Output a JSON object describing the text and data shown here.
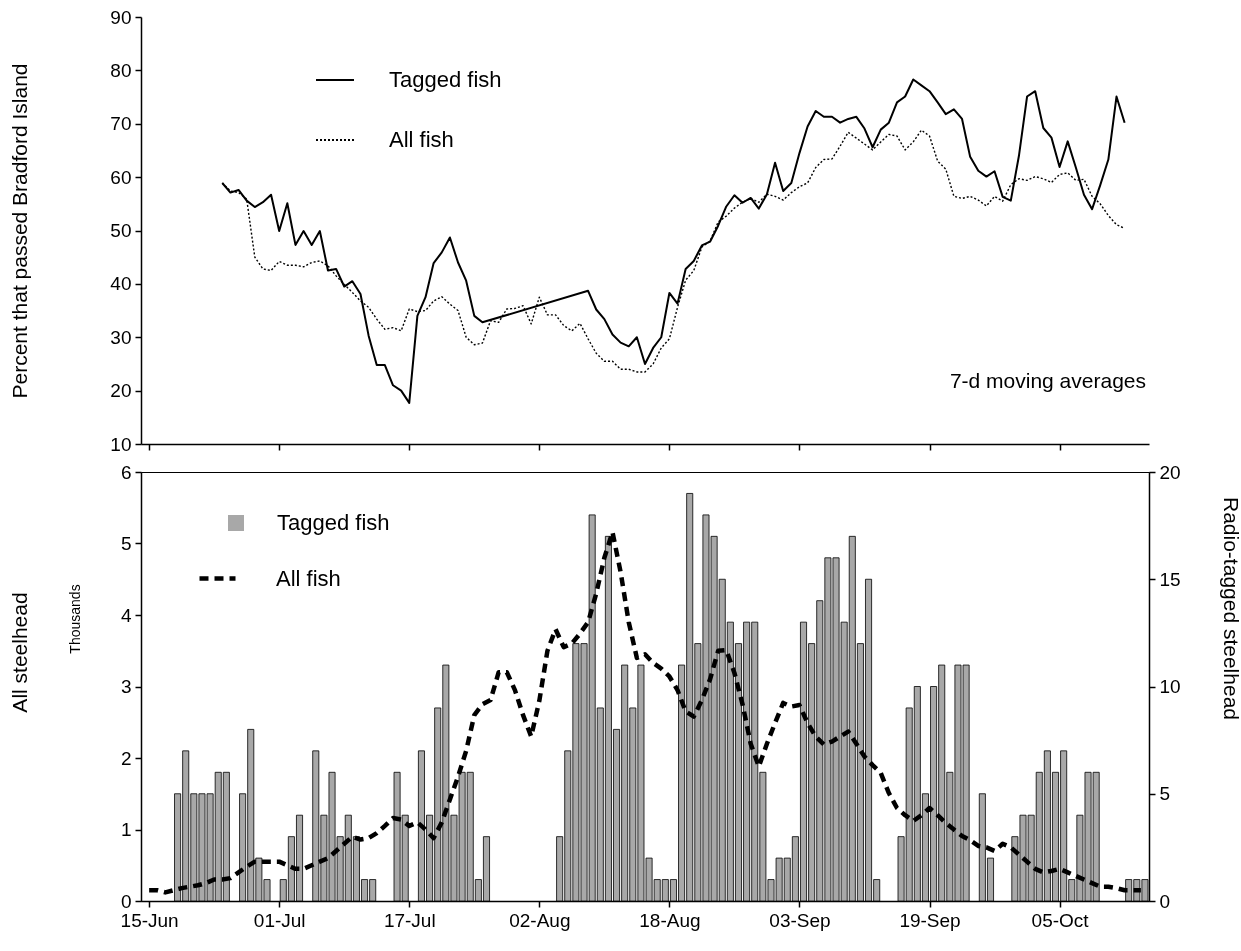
{
  "chart_data": [
    {
      "type": "line",
      "ylabel": "Percent that passed Bradford Island",
      "annotations": [
        "7-d moving averages"
      ],
      "xlim": [
        "--06-14",
        "--10-16"
      ],
      "xticks": [
        {
          "value": "--06-15",
          "label": null
        },
        {
          "value": "--07-01",
          "label": null
        },
        {
          "value": "--07-17",
          "label": null
        },
        {
          "value": "--08-02",
          "label": null
        },
        {
          "value": "--08-18",
          "label": null
        },
        {
          "value": "--09-03",
          "label": null
        },
        {
          "value": "--09-19",
          "label": null
        },
        {
          "value": "--10-05",
          "label": null
        }
      ],
      "tick_labels": "y",
      "ylim": [
        10,
        90
      ],
      "yticks": [
        10,
        20,
        30,
        40,
        50,
        60,
        70,
        80,
        90
      ],
      "grid": false,
      "legend": "top left",
      "series": [
        {
          "name": "Tagged fish",
          "color": "#000000",
          "line_style": "solid",
          "x": [
            "--06-24",
            "--06-25",
            "--06-26",
            "--06-27",
            "--06-28",
            "--06-29",
            "--06-30",
            "--07-01",
            "--07-02",
            "--07-03",
            "--07-04",
            "--07-05",
            "--07-06",
            "--07-07",
            "--07-08",
            "--07-09",
            "--07-10",
            "--07-11",
            "--07-12",
            "--07-13",
            "--07-14",
            "--07-15",
            "--07-16",
            "--07-17",
            "--07-18",
            "--07-19",
            "--07-20",
            "--07-21",
            "--07-22",
            "--07-23",
            "--07-24",
            "--07-25",
            "--07-26",
            "--08-08",
            "--08-09",
            "--08-10",
            "--08-11",
            "--08-12",
            "--08-13",
            "--08-14",
            "--08-15",
            "--08-16",
            "--08-17",
            "--08-18",
            "--08-19",
            "--08-20",
            "--08-21",
            "--08-22",
            "--08-23",
            "--08-24",
            "--08-25",
            "--08-26",
            "--08-27",
            "--08-28",
            "--08-29",
            "--08-30",
            "--08-31",
            "--09-01",
            "--09-02",
            "--09-03",
            "--09-04",
            "--09-05",
            "--09-06",
            "--09-07",
            "--09-08",
            "--09-09",
            "--09-10",
            "--09-11",
            "--09-12",
            "--09-13",
            "--09-14",
            "--09-15",
            "--09-16",
            "--09-17",
            "--09-18",
            "--09-19",
            "--09-20",
            "--09-21",
            "--09-22",
            "--09-23",
            "--09-24",
            "--09-25",
            "--09-26",
            "--09-27",
            "--09-28",
            "--09-29",
            "--09-30",
            "--10-01",
            "--10-02",
            "--10-03",
            "--10-04",
            "--10-05",
            "--10-06",
            "--10-07",
            "--10-08",
            "--10-09",
            "--10-10",
            "--10-11",
            "--10-12",
            "--10-13"
          ],
          "values": [
            58.9,
            57.1,
            57.6,
            55.6,
            54.4,
            55.3,
            56.7,
            49.9,
            55.1,
            47.3,
            49.9,
            47.3,
            49.9,
            42.5,
            42.8,
            39.5,
            40.5,
            38.1,
            30.3,
            24.8,
            24.8,
            21.0,
            20.0,
            17.7,
            34.0,
            37.5,
            43.9,
            45.9,
            48.7,
            44.0,
            40.6,
            34.0,
            32.8,
            38.7,
            35.2,
            33.4,
            30.5,
            29.0,
            28.3,
            30.0,
            25.0,
            28.0,
            30.0,
            38.3,
            36.3,
            42.8,
            44.3,
            47.2,
            47.9,
            50.9,
            54.5,
            56.6,
            55.2,
            56.1,
            54.1,
            56.8,
            62.7,
            57.4,
            58.9,
            64.5,
            69.5,
            72.4,
            71.3,
            71.3,
            70.2,
            70.9,
            71.3,
            69.1,
            65.6,
            68.9,
            70.2,
            74.0,
            75.1,
            78.3,
            77.2,
            76.1,
            74.0,
            71.8,
            72.7,
            70.9,
            63.8,
            61.2,
            60.1,
            61.1,
            56.3,
            55.6,
            64.0,
            75.1,
            76.1,
            69.2,
            67.4,
            61.9,
            66.7,
            61.8,
            56.7,
            54.0,
            58.5,
            63.3,
            75.1,
            70.2
          ]
        },
        {
          "name": "All fish",
          "color": "#000000",
          "line_style": "dotted",
          "x": [
            "--06-24",
            "--06-25",
            "--06-26",
            "--06-27",
            "--06-28",
            "--06-29",
            "--06-30",
            "--07-01",
            "--07-02",
            "--07-03",
            "--07-04",
            "--07-05",
            "--07-06",
            "--07-07",
            "--07-08",
            "--07-09",
            "--07-10",
            "--07-11",
            "--07-12",
            "--07-13",
            "--07-14",
            "--07-15",
            "--07-16",
            "--07-17",
            "--07-18",
            "--07-19",
            "--07-20",
            "--07-21",
            "--07-22",
            "--07-23",
            "--07-24",
            "--07-25",
            "--07-26",
            "--07-27",
            "--07-28",
            "--07-29",
            "--07-30",
            "--07-31",
            "--08-01",
            "--08-02",
            "--08-03",
            "--08-04",
            "--08-05",
            "--08-06",
            "--08-07",
            "--08-08",
            "--08-09",
            "--08-10",
            "--08-11",
            "--08-12",
            "--08-13",
            "--08-14",
            "--08-15",
            "--08-16",
            "--08-17",
            "--08-18",
            "--08-19",
            "--08-20",
            "--08-21",
            "--08-22",
            "--08-23",
            "--08-24",
            "--08-25",
            "--08-26",
            "--08-27",
            "--08-28",
            "--08-29",
            "--08-30",
            "--08-31",
            "--09-01",
            "--09-02",
            "--09-03",
            "--09-04",
            "--09-05",
            "--09-06",
            "--09-07",
            "--09-08",
            "--09-09",
            "--09-10",
            "--09-11",
            "--09-12",
            "--09-13",
            "--09-14",
            "--09-15",
            "--09-16",
            "--09-17",
            "--09-18",
            "--09-19",
            "--09-20",
            "--09-21",
            "--09-22",
            "--09-23",
            "--09-24",
            "--09-25",
            "--09-26",
            "--09-27",
            "--09-28",
            "--09-29",
            "--09-30",
            "--10-01",
            "--10-02",
            "--10-03",
            "--10-04",
            "--10-05",
            "--10-06",
            "--10-07",
            "--10-08",
            "--10-09",
            "--10-10",
            "--10-11",
            "--10-12",
            "--10-13"
          ],
          "values": [
            58.9,
            57.4,
            57.1,
            55.9,
            45.0,
            42.8,
            42.5,
            44.2,
            43.5,
            43.5,
            43.2,
            44.0,
            44.3,
            43.4,
            41.5,
            39.9,
            38.4,
            36.8,
            35.6,
            33.4,
            31.5,
            31.8,
            31.2,
            35.3,
            34.8,
            35.0,
            36.8,
            37.6,
            36.2,
            35.0,
            30.0,
            28.6,
            28.9,
            33.1,
            32.8,
            35.3,
            35.4,
            35.9,
            32.5,
            37.5,
            34.2,
            34.2,
            32.2,
            31.2,
            32.6,
            29.7,
            27.0,
            25.5,
            25.5,
            24.0,
            24.0,
            23.5,
            23.5,
            25.0,
            28.0,
            29.7,
            35.6,
            40.7,
            42.5,
            46.9,
            48.0,
            51.6,
            52.7,
            54.2,
            55.3,
            56.0,
            55.3,
            56.8,
            56.4,
            55.7,
            57.1,
            58.2,
            58.9,
            61.8,
            63.3,
            63.4,
            65.8,
            68.4,
            67.3,
            66.2,
            65.1,
            66.6,
            68.0,
            67.7,
            65.1,
            66.6,
            68.8,
            67.7,
            63.0,
            61.5,
            56.4,
            56.0,
            56.4,
            55.7,
            54.6,
            56.4,
            55.5,
            58.6,
            59.7,
            59.4,
            60.1,
            59.7,
            59.0,
            60.5,
            60.8,
            59.4,
            59.6,
            56.4,
            55.0,
            52.8,
            51.1,
            50.4
          ]
        }
      ]
    },
    {
      "type": "bar",
      "ylabel": "All steelhead",
      "y2label": "Radio-tagged steelhead",
      "annotations": [
        "Thousands"
      ],
      "xlim": [
        "--06-14",
        "--10-16"
      ],
      "xticks": [
        {
          "value": "--06-15",
          "label": "15-Jun"
        },
        {
          "value": "--07-01",
          "label": "01-Jul"
        },
        {
          "value": "--07-17",
          "label": "17-Jul"
        },
        {
          "value": "--08-02",
          "label": "02-Aug"
        },
        {
          "value": "--08-18",
          "label": "18-Aug"
        },
        {
          "value": "--09-03",
          "label": "03-Sep"
        },
        {
          "value": "--09-19",
          "label": "19-Sep"
        },
        {
          "value": "--10-05",
          "label": "05-Oct"
        }
      ],
      "ylim": [
        0,
        6
      ],
      "yticks": [
        0,
        1,
        2,
        3,
        4,
        5,
        6
      ],
      "y2lim": [
        0,
        20
      ],
      "y2ticks": [
        0,
        5,
        10,
        15,
        20
      ],
      "grid": false,
      "legend": "top left",
      "series": [
        {
          "name": "Tagged fish",
          "axis": "y2",
          "color": "#a8a8a8",
          "x": [
            "--06-18",
            "--06-19",
            "--06-20",
            "--06-21",
            "--06-22",
            "--06-23",
            "--06-24",
            "--06-26",
            "--06-27",
            "--06-28",
            "--06-29",
            "--07-01",
            "--07-02",
            "--07-03",
            "--07-05",
            "--07-06",
            "--07-07",
            "--07-08",
            "--07-09",
            "--07-10",
            "--07-11",
            "--07-12",
            "--07-15",
            "--07-16",
            "--07-18",
            "--07-19",
            "--07-20",
            "--07-21",
            "--07-22",
            "--07-23",
            "--07-24",
            "--07-25",
            "--07-26",
            "--08-04",
            "--08-05",
            "--08-06",
            "--08-07",
            "--08-08",
            "--08-09",
            "--08-10",
            "--08-11",
            "--08-12",
            "--08-13",
            "--08-14",
            "--08-15",
            "--08-16",
            "--08-17",
            "--08-18",
            "--08-19",
            "--08-20",
            "--08-21",
            "--08-22",
            "--08-23",
            "--08-24",
            "--08-25",
            "--08-26",
            "--08-27",
            "--08-28",
            "--08-29",
            "--08-30",
            "--08-31",
            "--09-01",
            "--09-02",
            "--09-03",
            "--09-04",
            "--09-05",
            "--09-06",
            "--09-07",
            "--09-08",
            "--09-09",
            "--09-10",
            "--09-11",
            "--09-12",
            "--09-15",
            "--09-16",
            "--09-17",
            "--09-18",
            "--09-19",
            "--09-20",
            "--09-21",
            "--09-22",
            "--09-23",
            "--09-25",
            "--09-26",
            "--09-29",
            "--09-30",
            "--10-01",
            "--10-02",
            "--10-03",
            "--10-04",
            "--10-05",
            "--10-06",
            "--10-07",
            "--10-08",
            "--10-09",
            "--10-13",
            "--10-14",
            "--10-15"
          ],
          "values": [
            5,
            7,
            5,
            5,
            5,
            6,
            6,
            5,
            8,
            2,
            1,
            1,
            3,
            4,
            7,
            4,
            6,
            3,
            4,
            3,
            1,
            1,
            6,
            4,
            7,
            4,
            9,
            11,
            4,
            6,
            6,
            1,
            3,
            3,
            7,
            12,
            12,
            18,
            9,
            17,
            8,
            11,
            9,
            11,
            2,
            1,
            1,
            1,
            11,
            19,
            12,
            18,
            17,
            15,
            13,
            12,
            13,
            13,
            6,
            1,
            2,
            2,
            3,
            13,
            12,
            14,
            16,
            16,
            13,
            17,
            12,
            15,
            1,
            3,
            9,
            10,
            5,
            10,
            11,
            6,
            11,
            11,
            5,
            2,
            3,
            4,
            4,
            6,
            7,
            6,
            7,
            1,
            4,
            6,
            6,
            1,
            1,
            1
          ]
        },
        {
          "name": "All fish",
          "type": "line",
          "axis": "y",
          "color": "#000000",
          "line_style": "dashed",
          "x": [
            "--06-15",
            "--06-16",
            "--06-17",
            "--06-18",
            "--06-19",
            "--06-20",
            "--06-21",
            "--06-22",
            "--06-23",
            "--06-24",
            "--06-25",
            "--06-26",
            "--06-27",
            "--06-28",
            "--06-29",
            "--06-30",
            "--07-01",
            "--07-02",
            "--07-03",
            "--07-04",
            "--07-05",
            "--07-06",
            "--07-07",
            "--07-08",
            "--07-09",
            "--07-10",
            "--07-11",
            "--07-12",
            "--07-13",
            "--07-14",
            "--07-15",
            "--07-16",
            "--07-17",
            "--07-18",
            "--07-19",
            "--07-20",
            "--07-21",
            "--07-22",
            "--07-23",
            "--07-24",
            "--07-25",
            "--07-26",
            "--07-27",
            "--07-28",
            "--07-29",
            "--07-30",
            "--07-31",
            "--08-01",
            "--08-02",
            "--08-03",
            "--08-04",
            "--08-05",
            "--08-06",
            "--08-07",
            "--08-08",
            "--08-09",
            "--08-10",
            "--08-11",
            "--08-12",
            "--08-13",
            "--08-14",
            "--08-15",
            "--08-16",
            "--08-17",
            "--08-18",
            "--08-19",
            "--08-20",
            "--08-21",
            "--08-22",
            "--08-23",
            "--08-24",
            "--08-25",
            "--08-26",
            "--08-27",
            "--08-28",
            "--08-29",
            "--08-30",
            "--08-31",
            "--09-01",
            "--09-02",
            "--09-03",
            "--09-04",
            "--09-05",
            "--09-06",
            "--09-07",
            "--09-08",
            "--09-09",
            "--09-10",
            "--09-11",
            "--09-12",
            "--09-13",
            "--09-14",
            "--09-15",
            "--09-16",
            "--09-17",
            "--09-18",
            "--09-19",
            "--09-20",
            "--09-21",
            "--09-22",
            "--09-23",
            "--09-24",
            "--09-25",
            "--09-26",
            "--09-27",
            "--09-28",
            "--09-29",
            "--09-30",
            "--10-01",
            "--10-02",
            "--10-03",
            "--10-04",
            "--10-05",
            "--10-06",
            "--10-07",
            "--10-08",
            "--10-09",
            "--10-10",
            "--10-11",
            "--10-12",
            "--10-13",
            "--10-14",
            "--10-15"
          ],
          "values": [
            0.15,
            0.15,
            0.12,
            0.15,
            0.18,
            0.2,
            0.22,
            0.25,
            0.3,
            0.3,
            0.32,
            0.4,
            0.48,
            0.55,
            0.55,
            0.55,
            0.55,
            0.5,
            0.45,
            0.45,
            0.5,
            0.55,
            0.6,
            0.7,
            0.8,
            0.9,
            0.86,
            0.88,
            0.95,
            1.05,
            1.16,
            1.14,
            1.05,
            1.1,
            1.0,
            0.88,
            1.1,
            1.42,
            1.74,
            2.1,
            2.6,
            2.75,
            2.81,
            3.2,
            3.2,
            2.95,
            2.6,
            2.3,
            2.8,
            3.5,
            3.8,
            3.55,
            3.6,
            3.74,
            3.9,
            4.3,
            4.8,
            5.16,
            4.6,
            3.9,
            3.4,
            3.45,
            3.33,
            3.25,
            3.14,
            2.95,
            2.65,
            2.58,
            2.81,
            3.1,
            3.5,
            3.51,
            3.19,
            2.75,
            2.2,
            1.88,
            2.2,
            2.49,
            2.77,
            2.72,
            2.74,
            2.49,
            2.3,
            2.19,
            2.23,
            2.3,
            2.37,
            2.2,
            2.02,
            1.9,
            1.79,
            1.51,
            1.3,
            1.2,
            1.12,
            1.2,
            1.3,
            1.2,
            1.09,
            1.0,
            0.91,
            0.85,
            0.77,
            0.75,
            0.7,
            0.8,
            0.75,
            0.65,
            0.55,
            0.45,
            0.4,
            0.42,
            0.45,
            0.4,
            0.35,
            0.3,
            0.25,
            0.2,
            0.2,
            0.18,
            0.15,
            0.15,
            0.15
          ]
        }
      ]
    }
  ]
}
